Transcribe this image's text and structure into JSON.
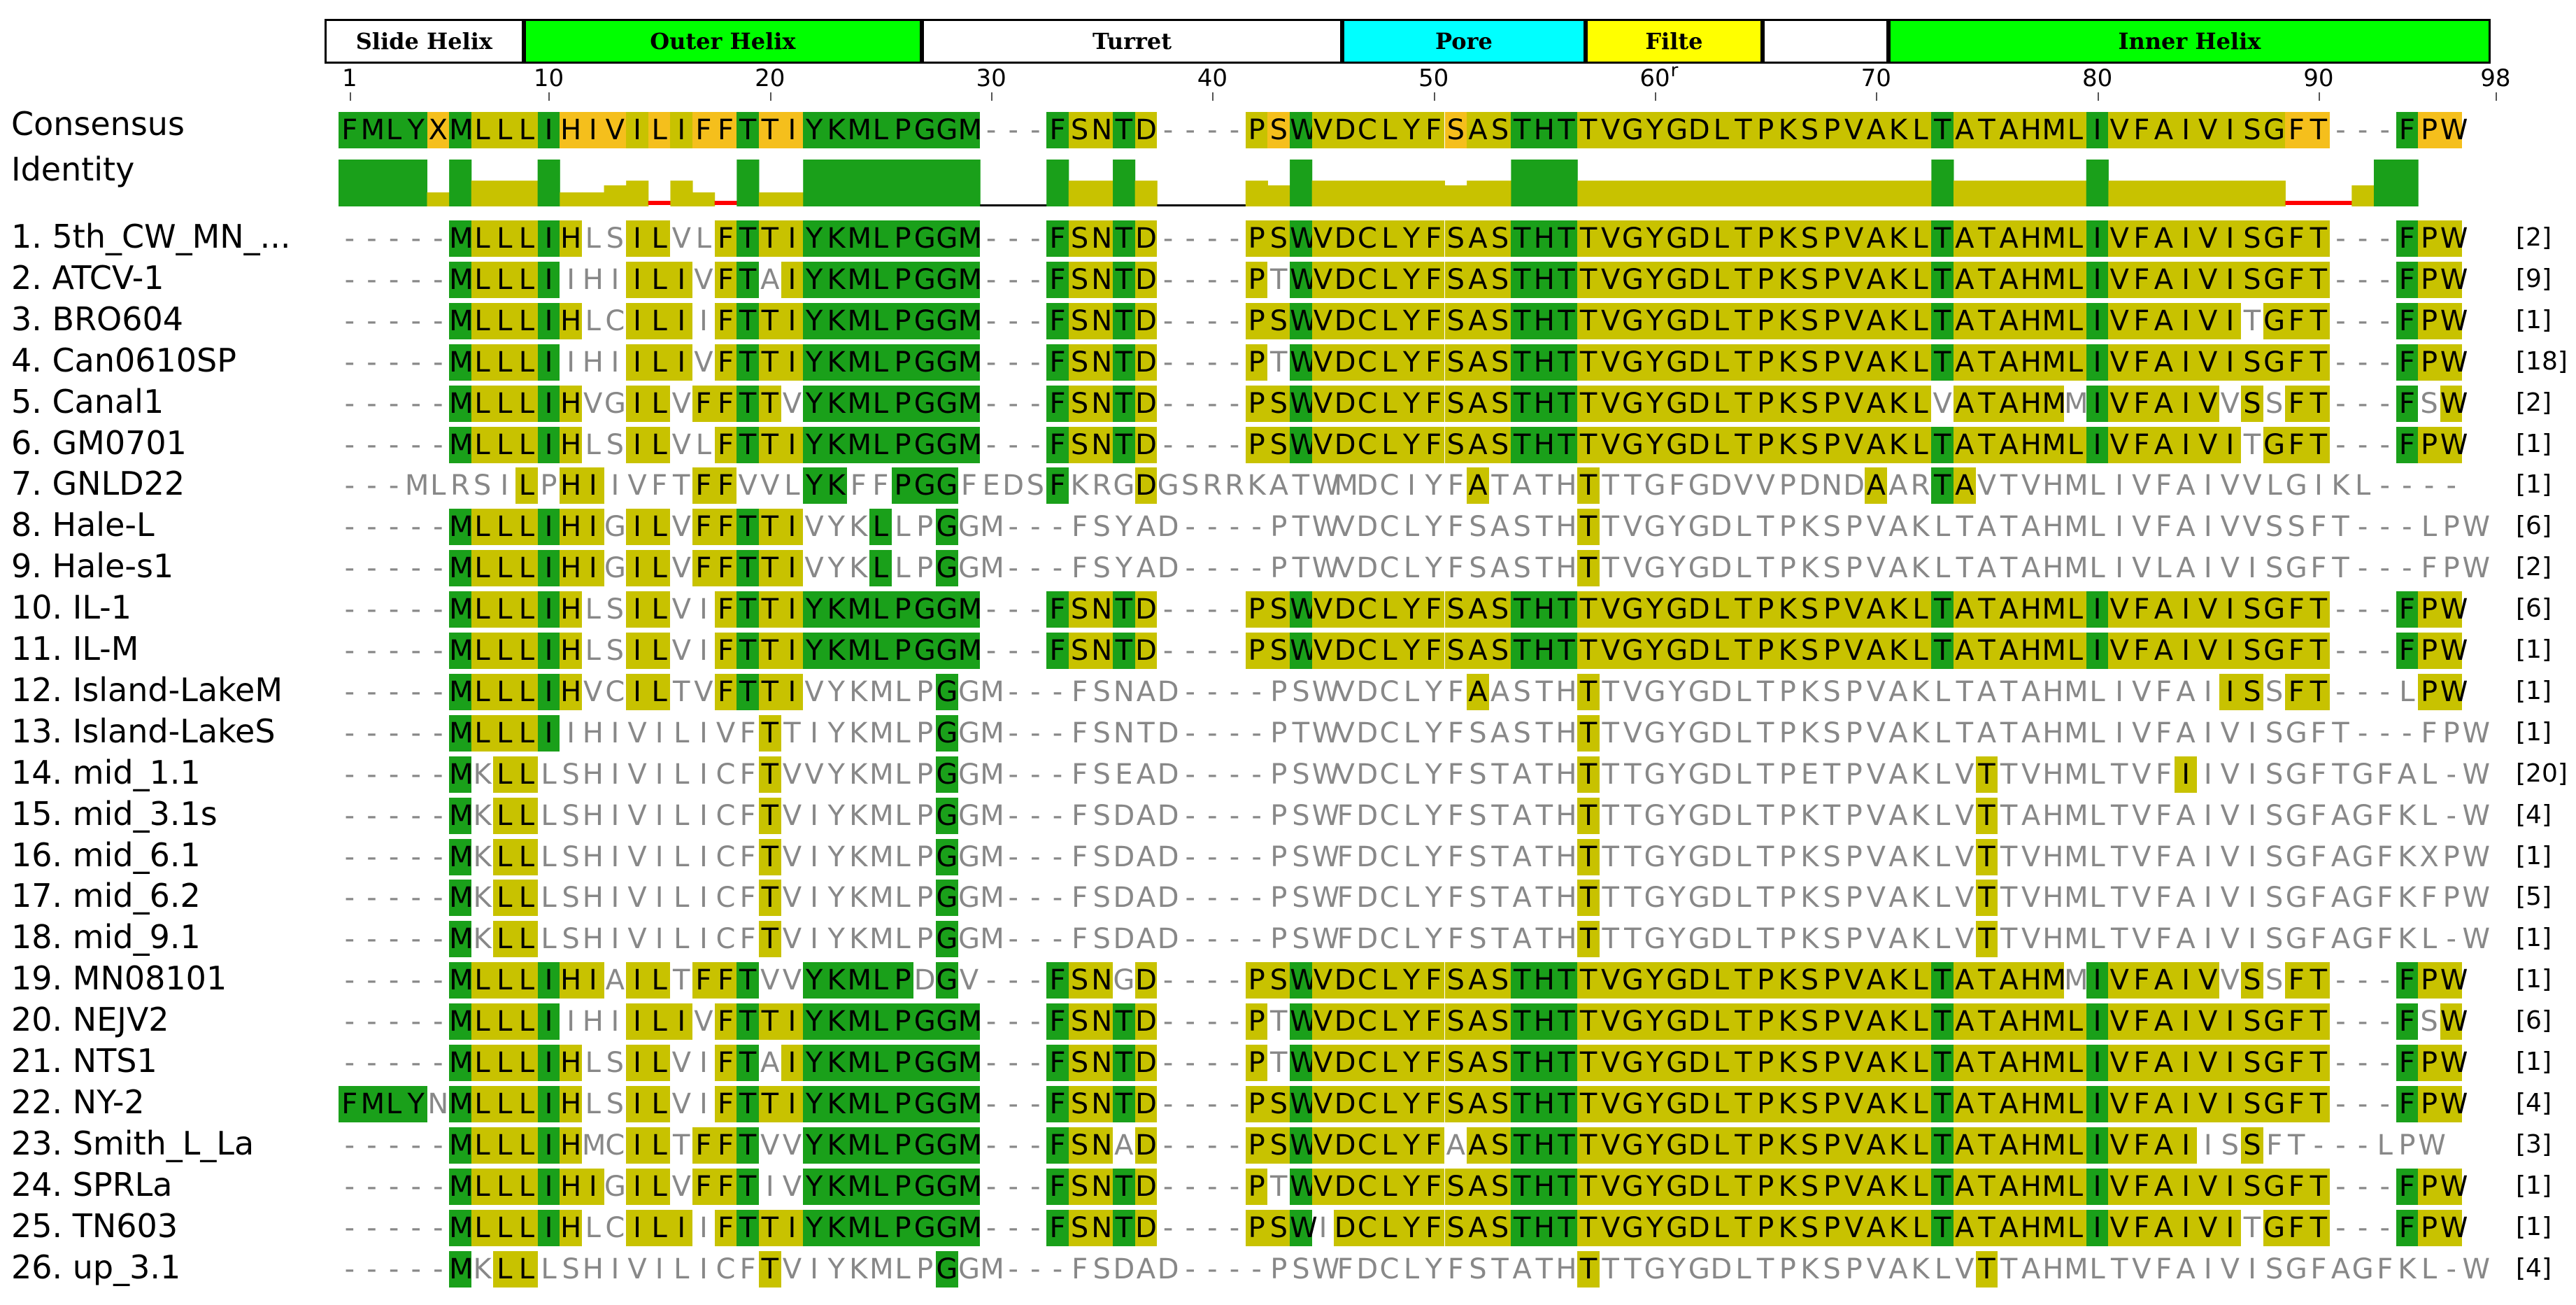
{
  "regions": [
    {
      "label": "Slide Helix",
      "start": 1,
      "end": 10,
      "color": "#ffffff"
    },
    {
      "label": "Outer Helix",
      "start": 10,
      "end": 28,
      "color": "#00ff00"
    },
    {
      "label": "Turret",
      "start": 28,
      "end": 47,
      "color": "#ffffff"
    },
    {
      "label": "Pore",
      "start": 47,
      "end": 58,
      "color": "#00ffff"
    },
    {
      "label": "Filte",
      "start": 58,
      "end": 66,
      "color": "#ffff00"
    },
    {
      "label": "",
      "start": 66,
      "end": 71.7,
      "color": "#ffffff"
    },
    {
      "label": "Inner Helix",
      "start": 71.7,
      "end": 98.9,
      "color": "#00ff00"
    }
  ],
  "ruler_ticks": [
    1,
    10,
    20,
    30,
    40,
    50,
    60,
    70,
    80,
    90,
    98
  ],
  "ruler_note": "r",
  "consensus": {
    "label": "Consensus",
    "sequence": "FMLYXMLLLIHIVILIFFTTIYKMLPGGM---FSNTD----PSWVDCLYFSASTHTTVGYGDLTPKSPVAKLTATAHMLIVFAIVISGFT---FPW"
  },
  "identity": {
    "label": "Identity",
    "values": [
      100,
      100,
      100,
      100,
      30,
      100,
      55,
      55,
      55,
      100,
      30,
      30,
      45,
      55,
      -20,
      55,
      30,
      -20,
      100,
      30,
      30,
      100,
      100,
      100,
      100,
      100,
      100,
      100,
      100,
      0,
      0,
      0,
      100,
      55,
      55,
      100,
      55,
      0,
      0,
      0,
      0,
      55,
      45,
      100,
      55,
      55,
      55,
      55,
      55,
      55,
      45,
      55,
      55,
      100,
      100,
      100,
      55,
      55,
      55,
      55,
      55,
      55,
      55,
      55,
      55,
      55,
      55,
      55,
      55,
      55,
      55,
      55,
      100,
      55,
      55,
      55,
      55,
      55,
      55,
      100,
      55,
      55,
      55,
      55,
      55,
      55,
      55,
      55,
      -15,
      -15,
      -15,
      45,
      100,
      100
    ]
  },
  "sequences": [
    {
      "label": "1. 5th_CW_MN_...",
      "sequence": "-----MLLLIHLSILVLFTTIYKMLPGGM---FSNTD----PSWVDCLYFSASTHTTVGYGDLTPKSPVAKLTATAHMLIVFAIVISGFT---FPW",
      "count": "[2]"
    },
    {
      "label": "2. ATCV-1",
      "sequence": "-----MLLLIIHIILIVFTAIYKMLPGGM---FSNTD----PTWVDCLYFSASTHTTVGYGDLTPKSPVAKLTATAHMLIVFAIVISGFT---FPW",
      "count": "[9]"
    },
    {
      "label": "3. BRO604",
      "sequence": "-----MLLLIHLCILIIFTTIYKMLPGGM---FSNTD----PSWVDCLYFSASTHTTVGYGDLTPKSPVAKLTATAHMLIVFAIVITGFT---FPW",
      "count": "[1]"
    },
    {
      "label": "4. Can0610SP",
      "sequence": "-----MLLLIIHIILIVFTTIYKMLPGGM---FSNTD----PTWVDCLYFSASTHTTVGYGDLTPKSPVAKLTATAHMLIVFAIVISGFT---FPW",
      "count": "[18]"
    },
    {
      "label": "5. Canal1",
      "sequence": "-----MLLLIHVGILVFFTTVYKMLPGGM---FSNTD----PSWVDCLYFSASTHTTVGYGDLTPKSPVAKLVATAHMMIVFAIVVSSFT---FSW",
      "count": "[2]"
    },
    {
      "label": "6. GM0701",
      "sequence": "-----MLLLIHLSILVLFTTIYKMLPGGM---FSNTD----PSWVDCLYFSASTHTTVGYGDLTPKSPVAKLTATAHMLIVFAIVITGFT---FPW",
      "count": "[1]"
    },
    {
      "label": "7. GNLD22",
      "sequence": "---MLRSILPHIIVFTFFVVLYKFFPGGFEDSFKRGDGSRRKATWMDCIYFATATHTTTGFGDVVPDNDAARTAVTVHMLIVFAIVVLGIKL----",
      "count": "[1]"
    },
    {
      "label": "8. Hale-L",
      "sequence": "-----MLLLIHIGILVFFTTIVYKLLPGGM---FSYAD----PTWVDCLYFSASTHTTVGYGDLTPKSPVAKLTATAHMLIVFAIVVSSFT---LPW",
      "count": "[6]"
    },
    {
      "label": "9. Hale-s1",
      "sequence": "-----MLLLIHIGILVFFTTIVYKLLPGGM---FSYAD----PTWVDCLYFSASTHTTVGYGDLTPKSPVAKLTATAHMLIVLAIVISGFT---FPW",
      "count": "[2]"
    },
    {
      "label": "10. IL-1",
      "sequence": "-----MLLLIHLSILVIFTTIYKMLPGGM---FSNTD----PSWVDCLYFSASTHTTVGYGDLTPKSPVAKLTATAHMLIVFAIVISGFT---FPW",
      "count": "[6]"
    },
    {
      "label": "11. IL-M",
      "sequence": "-----MLLLIHLSILVIFTTIYKMLPGGM---FSNTD----PSWVDCLYFSASTHTTVGYGDLTPKSPVAKLTATAHMLIVFAIVISGFT---FPW",
      "count": "[1]"
    },
    {
      "label": "12. Island-LakeM",
      "sequence": "-----MLLLIHVCILTVFTTIVYKMLPGGM---FSNAD----PSWVDCLYFAASTHTTVGYGDLTPKSPVAKLTATAHMLIVFAIISSFT---LPW",
      "count": "[1]"
    },
    {
      "label": "13. Island-LakeS",
      "sequence": "-----MLLLIIHIVILIVFTTIYKMLPGGM---FSNTD----PTWVDCLYFSASTHTTVGYGDLTPKSPVAKLTATAHMLIVFAIVISGFT---FPW",
      "count": "[1]"
    },
    {
      "label": "14. mid_1.1",
      "sequence": "-----MKLLLSHIVILICFTVVYKMLPGGM---FSEAD----PSWVDCLYFSTATHTTTGYGDLTPETPVAKLVTTVHMLTVFIIVISGFTGFAL-W",
      "count": "[20]"
    },
    {
      "label": "15. mid_3.1s",
      "sequence": "-----MKLLLSHIVILICFTVIYKMLPGGM---FSDAD----PSWFDCLYFSTATHTTTGYGDLTPKTPVAKLVTTAHMLTVFAIVISGFAGFKL-W",
      "count": "[4]"
    },
    {
      "label": "16. mid_6.1",
      "sequence": "-----MKLLLSHIVILICFTVIYKMLPGGM---FSDAD----PSWFDCLYFSTATHTTTGYGDLTPKSPVAKLVTTVHMLTVFAIVISGFAGFKXPW",
      "count": "[1]"
    },
    {
      "label": "17. mid_6.2",
      "sequence": "-----MKLLLSHIVILICFTVIYKMLPGGM---FSDAD----PSWFDCLYFSTATHTTTGYGDLTPKSPVAKLVTTVHMLTVFAIVISGFAGFKFPW",
      "count": "[5]"
    },
    {
      "label": "18. mid_9.1",
      "sequence": "-----MKLLLSHIVILICFTVIYKMLPGGM---FSDAD----PSWFDCLYFSTATHTTTGYGDLTPKSPVAKLVTTVHMLTVFAIVISGFAGFKL-W",
      "count": "[1]"
    },
    {
      "label": "19. MN08101",
      "sequence": "-----MLLLIHIAILTFFTVVYKMLPDGV---FSNGD----PSWVDCLYFSASTHTTVGYGDLTPKSPVAKLTATAHMMIVFAIVVSSFT---FPW",
      "count": "[1]"
    },
    {
      "label": "20. NEJV2",
      "sequence": "-----MLLLIIHIILIVFTTIYKMLPGGM---FSNTD----PTWVDCLYFSASTHTTVGYGDLTPKSPVAKLTATAHMLIVFAIVISGFT---FSW",
      "count": "[6]"
    },
    {
      "label": "21. NTS1",
      "sequence": "-----MLLLIHLSILVIFTAIYKMLPGGM---FSNTD----PTWVDCLYFSASTHTTVGYGDLTPKSPVAKLTATAHMLIVFAIVISGFT---FPW",
      "count": "[1]"
    },
    {
      "label": "22. NY-2",
      "sequence": "FMLYNMLLLIHLSILVIFTTIYKMLPGGM---FSNTD----PSWVDCLYFSASTHTTVGYGDLTPKSPVAKLTATAHMLIVFAIVISGFT---FPW",
      "count": "[4]"
    },
    {
      "label": "23. Smith_L_La",
      "sequence": "-----MLLLIHMCILTFFTVVYKMLPGGM---FSNAD----PSWVDCLYFAASTHTTVGYGDLTPKSPVAKLTATAHMLIVFAIISSFT---LPW",
      "count": "[3]"
    },
    {
      "label": "24. SPRLa",
      "sequence": "-----MLLLIHIGILVFFTIVYKMLPGGM---FSNTD----PTWVDCLYFSASTHTTVGYGDLTPKSPVAKLTATAHMLIVFAIVISGFT---FPW",
      "count": "[1]"
    },
    {
      "label": "25. TN603",
      "sequence": "-----MLLLIHLCILIIFTTIYKMLPGGM---FSNTD----PSWIDCLYFSASTHTTVGYGDLTPKSPVAKLTATAHMLIVFAIVITGFT---FPW",
      "count": "[1]"
    },
    {
      "label": "26. up_3.1",
      "sequence": "-----MKLLLSHIVILICFTVIYKMLPGGM---FSDAD----PSWFDCLYFSTATHTTTGYGDLTPKSPVAKLVTTAHMLTVFAIVISGFAGFKL-W",
      "count": "[4]"
    }
  ],
  "colors": {
    "identical": "#1aa01a",
    "high": "#f5bf1c",
    "medium": "#c8c200",
    "identity_low": "#ff0000",
    "text_gray": "#888888"
  }
}
